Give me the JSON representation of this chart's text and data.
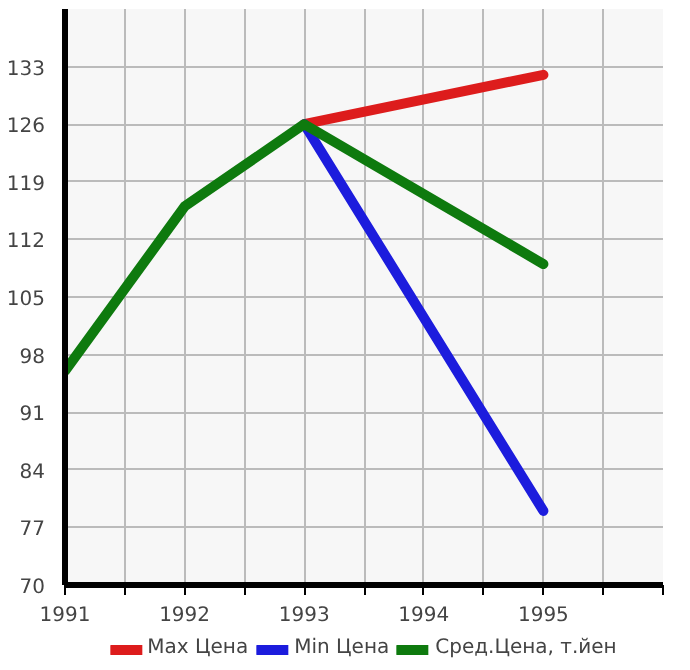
{
  "chart_data": {
    "type": "line",
    "x": [
      1991,
      1992,
      1993,
      1994,
      1995
    ],
    "series": [
      {
        "name": "Max Цена",
        "color": "#dd1c1c",
        "values": [
          null,
          null,
          126,
          null,
          132
        ]
      },
      {
        "name": "Min Цена",
        "color": "#1c1cdd",
        "values": [
          null,
          null,
          126,
          null,
          79
        ]
      },
      {
        "name": "Сред.Цена, т.йен",
        "color": "#0e7a0e",
        "values": [
          96,
          116,
          126,
          null,
          109
        ]
      }
    ],
    "xlim": [
      1991,
      1996
    ],
    "ylim": [
      70,
      140
    ],
    "xticks": [
      1991,
      {
        "value": 1991.5,
        "label": null
      },
      1992,
      {
        "value": 1992.5,
        "label": null
      },
      1993,
      {
        "value": 1993.5,
        "label": null
      },
      1994,
      {
        "value": 1994.5,
        "label": null
      },
      1995,
      {
        "value": 1995.5,
        "label": null
      },
      {
        "value": 1996,
        "label": null
      }
    ],
    "yticks": [
      70,
      77,
      84,
      91,
      98,
      105,
      112,
      119,
      126,
      133
    ],
    "grid": true,
    "legend": "bottom",
    "marker": "none",
    "line_style": "solid"
  }
}
